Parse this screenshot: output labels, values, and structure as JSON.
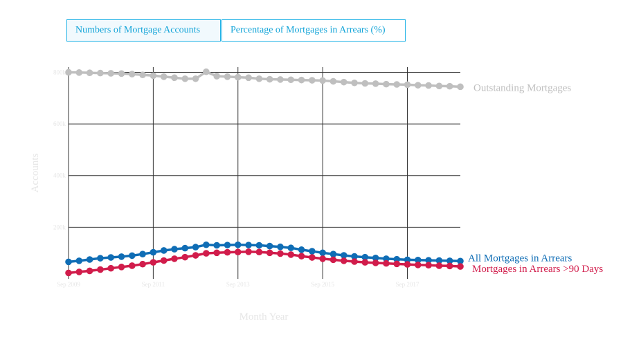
{
  "tabs": [
    {
      "label": "Numbers of Mortgage Accounts",
      "active": true
    },
    {
      "label": "Percentage of Mortgages in Arrears (%)",
      "active": false
    }
  ],
  "chart_data": {
    "type": "line",
    "xlabel": "Month Year",
    "ylabel": "Accounts",
    "x_tick_labels": [
      "Sep 2009",
      "Sep 2011",
      "Sep 2013",
      "Sep 2015",
      "Sep 2017"
    ],
    "y_tick_labels": [
      "200k",
      "400k",
      "600k",
      "800k"
    ],
    "ylim": [
      0,
      820000
    ],
    "grid": true,
    "legend": "inline labels at line ends",
    "x_start": "Sep 2009",
    "x_step": "quarter",
    "series": [
      {
        "name": "Outstanding Mortgages",
        "color": "#bfbfbf",
        "values": [
          800000,
          799000,
          798000,
          797000,
          796000,
          795000,
          793000,
          790000,
          787000,
          783000,
          779000,
          775000,
          775000,
          802000,
          785000,
          783000,
          781000,
          779000,
          775000,
          773000,
          772000,
          771000,
          770000,
          769000,
          768000,
          765000,
          762000,
          759000,
          757000,
          756000,
          754000,
          753000,
          752000,
          750000,
          749000,
          747000,
          746000,
          744000
        ]
      },
      {
        "name": "All Mortgages in Arrears",
        "color": "#0f6db5",
        "values": [
          66000,
          70000,
          75000,
          80000,
          83000,
          86000,
          90000,
          96000,
          103000,
          110000,
          115000,
          119000,
          123000,
          132000,
          130000,
          131000,
          132000,
          131000,
          130000,
          127000,
          124000,
          120000,
          113000,
          107000,
          101000,
          96000,
          91000,
          87000,
          84000,
          81000,
          78000,
          76000,
          74000,
          73000,
          72000,
          71000,
          70000,
          69000
        ]
      },
      {
        "name": "Mortgages in Arrears >90 Days",
        "color": "#d11c4b",
        "values": [
          23000,
          27000,
          31000,
          36000,
          41000,
          46000,
          51000,
          57000,
          64000,
          71000,
          78000,
          84000,
          91000,
          99000,
          101000,
          103000,
          104000,
          105000,
          104000,
          101000,
          98000,
          94000,
          88000,
          83000,
          78000,
          74000,
          70000,
          67000,
          64000,
          62000,
          60000,
          58000,
          56000,
          54000,
          53000,
          51000,
          50000,
          48000
        ]
      }
    ]
  }
}
